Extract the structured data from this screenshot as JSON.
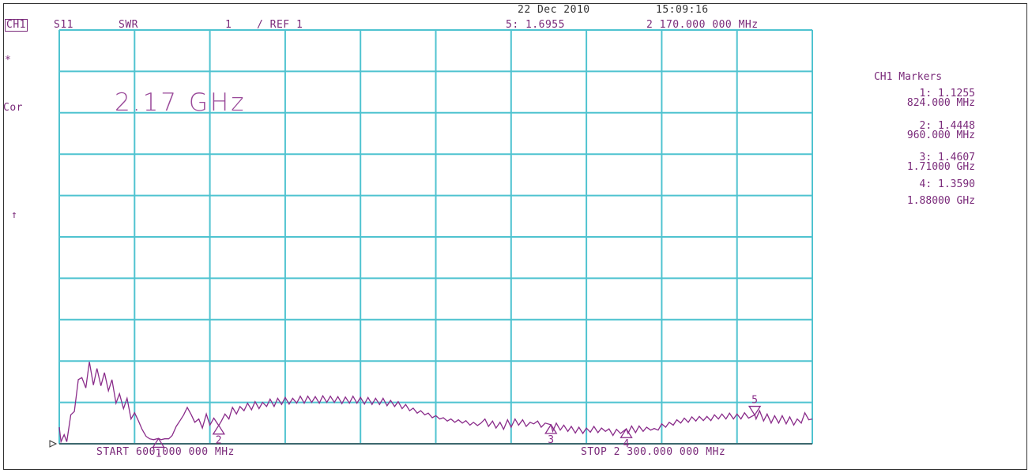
{
  "header": {
    "channel": "CH1",
    "parameter": "S11",
    "format": "SWR",
    "scale": "1",
    "ref": "/ REF 1",
    "date": "22 Dec 2010",
    "time": "15:09:16",
    "active_marker": "5: 1.6955",
    "active_marker_freq": "2 170.000 000 MHz"
  },
  "side_labels": {
    "star": "*",
    "cor": "Cor",
    "ref_arrow": "↑"
  },
  "annotation": "2.17 GHz",
  "footer": {
    "start": "START 600.000 000 MHz",
    "stop": "STOP 2 300.000 000 MHz"
  },
  "markers_panel": {
    "title": "CH1 Markers",
    "items": [
      {
        "label": "1: 1.1255",
        "freq": "824.000 MHz"
      },
      {
        "label": "2: 1.4448",
        "freq": "960.000 MHz"
      },
      {
        "label": "3: 1.4607",
        "freq": "1.71000 GHz"
      },
      {
        "label": "4: 1.3590",
        "freq": "1.88000 GHz"
      }
    ]
  },
  "chart_data": {
    "type": "line",
    "title": "",
    "xlabel": "",
    "ylabel": "",
    "x_unit": "MHz",
    "xlim": [
      600,
      2300
    ],
    "ylim": [
      1,
      11
    ],
    "grid": true,
    "colors": {
      "trace": "#8a2c8a",
      "grid": "#4fc3d0",
      "text": "#7a2a7a"
    },
    "series": [
      {
        "values": [
          [
            600,
            1.4
          ],
          [
            604,
            1.05
          ],
          [
            611,
            1.22
          ],
          [
            617,
            1.05
          ],
          [
            626,
            1.7
          ],
          [
            634,
            1.78
          ],
          [
            643,
            2.55
          ],
          [
            651,
            2.6
          ],
          [
            660,
            2.35
          ],
          [
            668,
            2.98
          ],
          [
            677,
            2.42
          ],
          [
            685,
            2.82
          ],
          [
            694,
            2.4
          ],
          [
            702,
            2.72
          ],
          [
            711,
            2.28
          ],
          [
            719,
            2.55
          ],
          [
            728,
            1.98
          ],
          [
            736,
            2.21
          ],
          [
            745,
            1.85
          ],
          [
            753,
            2.1
          ],
          [
            762,
            1.6
          ],
          [
            770,
            1.75
          ],
          [
            779,
            1.55
          ],
          [
            787,
            1.35
          ],
          [
            796,
            1.18
          ],
          [
            804,
            1.12
          ],
          [
            813,
            1.1
          ],
          [
            824,
            1.13
          ],
          [
            830,
            1.1
          ],
          [
            838,
            1.12
          ],
          [
            847,
            1.12
          ],
          [
            855,
            1.2
          ],
          [
            864,
            1.42
          ],
          [
            872,
            1.55
          ],
          [
            881,
            1.7
          ],
          [
            889,
            1.88
          ],
          [
            898,
            1.7
          ],
          [
            906,
            1.52
          ],
          [
            915,
            1.6
          ],
          [
            923,
            1.38
          ],
          [
            932,
            1.72
          ],
          [
            940,
            1.45
          ],
          [
            949,
            1.62
          ],
          [
            960,
            1.44
          ],
          [
            966,
            1.55
          ],
          [
            974,
            1.72
          ],
          [
            983,
            1.6
          ],
          [
            991,
            1.88
          ],
          [
            1000,
            1.72
          ],
          [
            1008,
            1.9
          ],
          [
            1017,
            1.8
          ],
          [
            1025,
            1.98
          ],
          [
            1034,
            1.82
          ],
          [
            1042,
            2.02
          ],
          [
            1051,
            1.85
          ],
          [
            1059,
            2.0
          ],
          [
            1068,
            1.9
          ],
          [
            1076,
            2.08
          ],
          [
            1085,
            1.9
          ],
          [
            1093,
            2.1
          ],
          [
            1102,
            1.95
          ],
          [
            1110,
            2.12
          ],
          [
            1119,
            1.96
          ],
          [
            1127,
            2.1
          ],
          [
            1136,
            1.98
          ],
          [
            1144,
            2.15
          ],
          [
            1153,
            1.98
          ],
          [
            1161,
            2.15
          ],
          [
            1170,
            2.0
          ],
          [
            1178,
            2.14
          ],
          [
            1187,
            1.98
          ],
          [
            1195,
            2.16
          ],
          [
            1204,
            2.0
          ],
          [
            1212,
            2.15
          ],
          [
            1221,
            2.0
          ],
          [
            1229,
            2.14
          ],
          [
            1238,
            1.97
          ],
          [
            1246,
            2.13
          ],
          [
            1255,
            1.98
          ],
          [
            1263,
            2.15
          ],
          [
            1272,
            1.98
          ],
          [
            1280,
            2.12
          ],
          [
            1289,
            1.96
          ],
          [
            1297,
            2.12
          ],
          [
            1306,
            1.95
          ],
          [
            1314,
            2.1
          ],
          [
            1323,
            1.95
          ],
          [
            1331,
            2.1
          ],
          [
            1340,
            1.92
          ],
          [
            1348,
            2.05
          ],
          [
            1357,
            1.9
          ],
          [
            1365,
            2.02
          ],
          [
            1374,
            1.85
          ],
          [
            1382,
            1.95
          ],
          [
            1391,
            1.8
          ],
          [
            1399,
            1.86
          ],
          [
            1408,
            1.74
          ],
          [
            1416,
            1.8
          ],
          [
            1425,
            1.7
          ],
          [
            1433,
            1.74
          ],
          [
            1442,
            1.63
          ],
          [
            1450,
            1.68
          ],
          [
            1459,
            1.6
          ],
          [
            1467,
            1.63
          ],
          [
            1476,
            1.55
          ],
          [
            1484,
            1.6
          ],
          [
            1493,
            1.52
          ],
          [
            1501,
            1.58
          ],
          [
            1510,
            1.5
          ],
          [
            1518,
            1.56
          ],
          [
            1527,
            1.45
          ],
          [
            1535,
            1.52
          ],
          [
            1544,
            1.44
          ],
          [
            1552,
            1.5
          ],
          [
            1561,
            1.6
          ],
          [
            1569,
            1.42
          ],
          [
            1578,
            1.55
          ],
          [
            1586,
            1.38
          ],
          [
            1595,
            1.52
          ],
          [
            1603,
            1.35
          ],
          [
            1612,
            1.58
          ],
          [
            1620,
            1.4
          ],
          [
            1629,
            1.6
          ],
          [
            1637,
            1.45
          ],
          [
            1646,
            1.58
          ],
          [
            1654,
            1.42
          ],
          [
            1663,
            1.52
          ],
          [
            1671,
            1.48
          ],
          [
            1680,
            1.55
          ],
          [
            1688,
            1.4
          ],
          [
            1697,
            1.5
          ],
          [
            1710,
            1.46
          ],
          [
            1714,
            1.3
          ],
          [
            1722,
            1.5
          ],
          [
            1731,
            1.33
          ],
          [
            1739,
            1.45
          ],
          [
            1748,
            1.3
          ],
          [
            1756,
            1.42
          ],
          [
            1765,
            1.26
          ],
          [
            1773,
            1.4
          ],
          [
            1782,
            1.25
          ],
          [
            1790,
            1.38
          ],
          [
            1799,
            1.28
          ],
          [
            1807,
            1.42
          ],
          [
            1816,
            1.27
          ],
          [
            1824,
            1.38
          ],
          [
            1833,
            1.3
          ],
          [
            1841,
            1.36
          ],
          [
            1850,
            1.2
          ],
          [
            1858,
            1.35
          ],
          [
            1867,
            1.25
          ],
          [
            1880,
            1.36
          ],
          [
            1884,
            1.25
          ],
          [
            1892,
            1.43
          ],
          [
            1901,
            1.27
          ],
          [
            1909,
            1.43
          ],
          [
            1918,
            1.3
          ],
          [
            1926,
            1.4
          ],
          [
            1935,
            1.33
          ],
          [
            1943,
            1.37
          ],
          [
            1952,
            1.33
          ],
          [
            1960,
            1.48
          ],
          [
            1969,
            1.4
          ],
          [
            1977,
            1.52
          ],
          [
            1986,
            1.45
          ],
          [
            1994,
            1.58
          ],
          [
            2003,
            1.5
          ],
          [
            2011,
            1.62
          ],
          [
            2020,
            1.52
          ],
          [
            2028,
            1.65
          ],
          [
            2037,
            1.55
          ],
          [
            2045,
            1.66
          ],
          [
            2054,
            1.56
          ],
          [
            2062,
            1.66
          ],
          [
            2071,
            1.56
          ],
          [
            2079,
            1.7
          ],
          [
            2088,
            1.6
          ],
          [
            2096,
            1.72
          ],
          [
            2105,
            1.6
          ],
          [
            2113,
            1.74
          ],
          [
            2122,
            1.6
          ],
          [
            2130,
            1.72
          ],
          [
            2139,
            1.6
          ],
          [
            2147,
            1.75
          ],
          [
            2156,
            1.62
          ],
          [
            2170,
            1.7
          ],
          [
            2173,
            1.6
          ],
          [
            2181,
            1.8
          ],
          [
            2190,
            1.55
          ],
          [
            2198,
            1.72
          ],
          [
            2207,
            1.5
          ],
          [
            2215,
            1.68
          ],
          [
            2224,
            1.5
          ],
          [
            2232,
            1.68
          ],
          [
            2241,
            1.48
          ],
          [
            2249,
            1.65
          ],
          [
            2258,
            1.45
          ],
          [
            2266,
            1.6
          ],
          [
            2275,
            1.5
          ],
          [
            2283,
            1.75
          ],
          [
            2292,
            1.58
          ],
          [
            2300,
            1.6
          ]
        ]
      }
    ],
    "markers": [
      {
        "id": "1",
        "x": 824,
        "y": 1.1255,
        "dir": "up"
      },
      {
        "id": "2",
        "x": 960,
        "y": 1.4448,
        "dir": "up"
      },
      {
        "id": "3",
        "x": 1710,
        "y": 1.4607,
        "dir": "up"
      },
      {
        "id": "4",
        "x": 1880,
        "y": 1.359,
        "dir": "up"
      },
      {
        "id": "5",
        "x": 2170,
        "y": 1.6955,
        "dir": "down"
      }
    ]
  }
}
